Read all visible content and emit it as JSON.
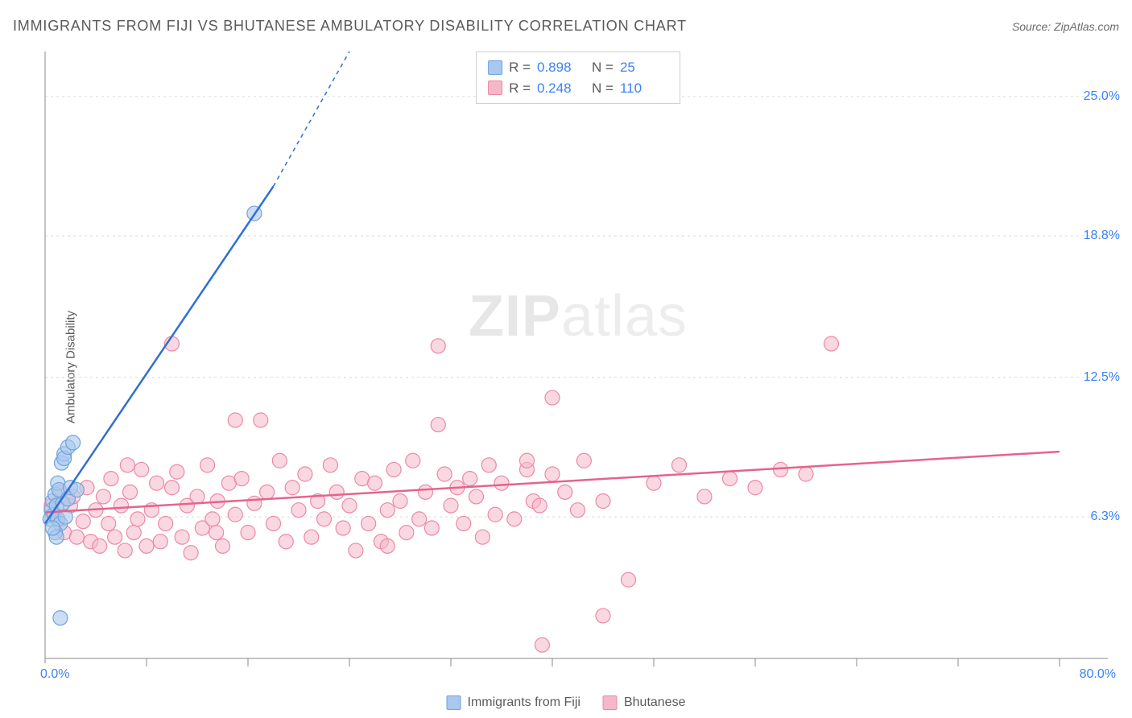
{
  "header": {
    "title": "IMMIGRANTS FROM FIJI VS BHUTANESE AMBULATORY DISABILITY CORRELATION CHART",
    "source_prefix": "Source: ",
    "source_name": "ZipAtlas.com"
  },
  "watermark": {
    "bold": "ZIP",
    "rest": "atlas"
  },
  "y_axis_label": "Ambulatory Disability",
  "colors": {
    "fiji_fill": "#a8c8ed",
    "fiji_stroke": "#6fa3dd",
    "fiji_line": "#2f6fd4",
    "bhut_fill": "#f5b8c8",
    "bhut_stroke": "#ec89a4",
    "bhut_line": "#e6638b",
    "grid": "#d9d9d9",
    "axis": "#888888",
    "stat_value": "#3b82f6",
    "text": "#5a5a5a"
  },
  "chart": {
    "type": "scatter",
    "x_range": [
      0,
      80
    ],
    "y_range": [
      0,
      27
    ],
    "y_ticks": [
      {
        "v": 6.3,
        "label": "6.3%"
      },
      {
        "v": 12.5,
        "label": "12.5%"
      },
      {
        "v": 18.8,
        "label": "18.8%"
      },
      {
        "v": 25.0,
        "label": "25.0%"
      }
    ],
    "x_min_label": "0.0%",
    "x_max_label": "80.0%",
    "x_tick_positions": [
      8,
      16,
      24,
      32,
      40,
      48,
      56,
      64,
      72,
      80
    ],
    "marker_radius": 9,
    "series": [
      {
        "name": "Immigrants from Fiji",
        "key": "fiji",
        "r_value": "0.898",
        "n_value": "25",
        "trend": {
          "x1": 0,
          "y1": 6.0,
          "x2": 18,
          "y2": 21.0,
          "dash_x2": 24,
          "dash_y2": 27.0
        },
        "points": [
          [
            0.4,
            6.2
          ],
          [
            0.5,
            6.6
          ],
          [
            0.6,
            7.0
          ],
          [
            0.7,
            6.4
          ],
          [
            0.8,
            7.3
          ],
          [
            0.9,
            6.8
          ],
          [
            1.0,
            7.8
          ],
          [
            1.0,
            6.2
          ],
          [
            1.2,
            6.0
          ],
          [
            1.1,
            7.5
          ],
          [
            1.3,
            8.7
          ],
          [
            1.4,
            6.9
          ],
          [
            1.5,
            9.1
          ],
          [
            1.5,
            8.9
          ],
          [
            1.6,
            6.3
          ],
          [
            1.8,
            7.1
          ],
          [
            2.0,
            7.6
          ],
          [
            1.8,
            9.4
          ],
          [
            2.2,
            9.6
          ],
          [
            2.5,
            7.5
          ],
          [
            0.8,
            5.6
          ],
          [
            16.5,
            19.8
          ],
          [
            1.2,
            1.8
          ],
          [
            0.9,
            5.4
          ],
          [
            0.6,
            5.8
          ]
        ]
      },
      {
        "name": "Bhutanese",
        "key": "bhut",
        "r_value": "0.248",
        "n_value": "110",
        "trend": {
          "x1": 0,
          "y1": 6.5,
          "x2": 80,
          "y2": 9.2
        },
        "points": [
          [
            0.5,
            6.8
          ],
          [
            1.0,
            6.2
          ],
          [
            1.2,
            7.4
          ],
          [
            1.5,
            5.6
          ],
          [
            2.0,
            6.8
          ],
          [
            2.2,
            7.2
          ],
          [
            2.5,
            5.4
          ],
          [
            3.0,
            6.1
          ],
          [
            3.3,
            7.6
          ],
          [
            3.6,
            5.2
          ],
          [
            4.0,
            6.6
          ],
          [
            4.3,
            5.0
          ],
          [
            4.6,
            7.2
          ],
          [
            5.0,
            6.0
          ],
          [
            5.2,
            8.0
          ],
          [
            5.5,
            5.4
          ],
          [
            6.0,
            6.8
          ],
          [
            6.3,
            4.8
          ],
          [
            6.7,
            7.4
          ],
          [
            7.0,
            5.6
          ],
          [
            7.3,
            6.2
          ],
          [
            7.6,
            8.4
          ],
          [
            8.0,
            5.0
          ],
          [
            8.4,
            6.6
          ],
          [
            8.8,
            7.8
          ],
          [
            9.1,
            5.2
          ],
          [
            9.5,
            6.0
          ],
          [
            10.0,
            7.6
          ],
          [
            10.4,
            8.3
          ],
          [
            10.8,
            5.4
          ],
          [
            11.2,
            6.8
          ],
          [
            11.5,
            4.7
          ],
          [
            12.0,
            7.2
          ],
          [
            12.4,
            5.8
          ],
          [
            12.8,
            8.6
          ],
          [
            13.2,
            6.2
          ],
          [
            13.6,
            7.0
          ],
          [
            14.0,
            5.0
          ],
          [
            14.5,
            7.8
          ],
          [
            15.0,
            6.4
          ],
          [
            15.5,
            8.0
          ],
          [
            16.0,
            5.6
          ],
          [
            16.5,
            6.9
          ],
          [
            17.0,
            10.6
          ],
          [
            17.5,
            7.4
          ],
          [
            18.0,
            6.0
          ],
          [
            18.5,
            8.8
          ],
          [
            19.0,
            5.2
          ],
          [
            19.5,
            7.6
          ],
          [
            20.0,
            6.6
          ],
          [
            20.5,
            8.2
          ],
          [
            21.0,
            5.4
          ],
          [
            21.5,
            7.0
          ],
          [
            22.0,
            6.2
          ],
          [
            22.5,
            8.6
          ],
          [
            23.0,
            7.4
          ],
          [
            23.5,
            5.8
          ],
          [
            24.0,
            6.8
          ],
          [
            24.5,
            4.8
          ],
          [
            25.0,
            8.0
          ],
          [
            25.5,
            6.0
          ],
          [
            26.0,
            7.8
          ],
          [
            26.5,
            5.2
          ],
          [
            27.0,
            6.6
          ],
          [
            27.5,
            8.4
          ],
          [
            28.0,
            7.0
          ],
          [
            28.5,
            5.6
          ],
          [
            29.0,
            8.8
          ],
          [
            29.5,
            6.2
          ],
          [
            30.0,
            7.4
          ],
          [
            30.5,
            5.8
          ],
          [
            31.5,
            8.2
          ],
          [
            32.0,
            6.8
          ],
          [
            32.5,
            7.6
          ],
          [
            33.0,
            6.0
          ],
          [
            33.5,
            8.0
          ],
          [
            34.0,
            7.2
          ],
          [
            34.5,
            5.4
          ],
          [
            35.0,
            8.6
          ],
          [
            35.5,
            6.4
          ],
          [
            36.0,
            7.8
          ],
          [
            37.0,
            6.2
          ],
          [
            38.0,
            8.4
          ],
          [
            38.5,
            7.0
          ],
          [
            39.0,
            6.8
          ],
          [
            40.0,
            8.2
          ],
          [
            41.0,
            7.4
          ],
          [
            42.0,
            6.6
          ],
          [
            42.5,
            8.8
          ],
          [
            44.0,
            7.0
          ],
          [
            46.0,
            3.5
          ],
          [
            48.0,
            7.8
          ],
          [
            50.0,
            8.6
          ],
          [
            52.0,
            7.2
          ],
          [
            54.0,
            8.0
          ],
          [
            56.0,
            7.6
          ],
          [
            58.0,
            8.4
          ],
          [
            44.0,
            1.9
          ],
          [
            60.0,
            8.2
          ],
          [
            31.0,
            13.9
          ],
          [
            40.0,
            11.6
          ],
          [
            10.0,
            14.0
          ],
          [
            31.0,
            10.4
          ],
          [
            38.0,
            8.8
          ],
          [
            62.0,
            14.0
          ],
          [
            27.0,
            5.0
          ],
          [
            13.5,
            5.6
          ],
          [
            39.2,
            0.6
          ],
          [
            15.0,
            10.6
          ],
          [
            6.5,
            8.6
          ]
        ]
      }
    ]
  },
  "stats_labels": {
    "r": "R =",
    "n": "N ="
  },
  "legend": {
    "fiji": "Immigrants from Fiji",
    "bhutanese": "Bhutanese"
  }
}
